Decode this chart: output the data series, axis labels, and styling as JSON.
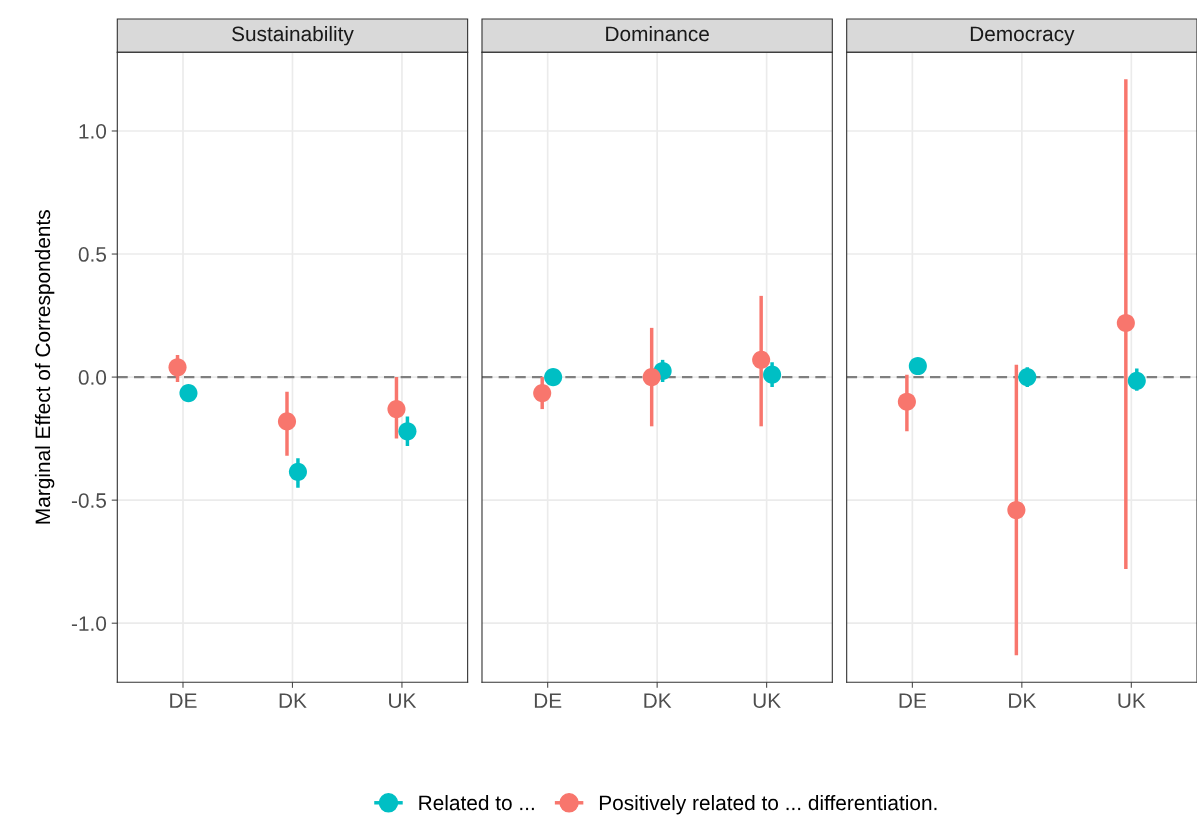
{
  "chart_data": [
    {
      "type": "scatter",
      "title": "Sustainability",
      "ylabel": "Marginal Effect of Correspondents",
      "categories": [
        "DE",
        "DK",
        "UK"
      ],
      "ylim": [
        -1.24,
        1.32
      ],
      "yticks": [
        {
          "value": -1.0,
          "label": "-1.0"
        },
        {
          "value": -0.5,
          "label": "-0.5"
        },
        {
          "value": 0.0,
          "label": "0.0"
        },
        {
          "value": 0.5,
          "label": "0.5"
        },
        {
          "value": 1.0,
          "label": "1.0"
        }
      ],
      "grid": true,
      "marker": "circle",
      "legend": "bottom",
      "ref_lines": [
        {
          "axis": "y",
          "value": 0,
          "color": "#7f7f7f",
          "line_style": "dashed"
        }
      ],
      "series": [
        {
          "name": "Related to ...",
          "color": "#00bfc4",
          "values": [
            -0.065,
            -0.385,
            -0.22
          ],
          "errors": [
            null,
            [
              -0.45,
              -0.33
            ],
            [
              -0.28,
              -0.16
            ]
          ]
        },
        {
          "name": "Positively related to ... differentiation.",
          "color": "#f8766d",
          "values": [
            0.04,
            -0.18,
            -0.13
          ],
          "errors": [
            [
              -0.02,
              0.09
            ],
            [
              -0.32,
              -0.06
            ],
            [
              -0.25,
              0.0
            ]
          ]
        }
      ]
    },
    {
      "type": "scatter",
      "title": "Dominance",
      "categories": [
        "DE",
        "DK",
        "UK"
      ],
      "ylim": [
        -1.24,
        1.32
      ],
      "tick_labels": "x",
      "grid": true,
      "marker": "circle",
      "ref_lines": [
        {
          "axis": "y",
          "value": 0,
          "color": "#7f7f7f",
          "line_style": "dashed"
        }
      ],
      "series": [
        {
          "color": "#00bfc4",
          "values": [
            0.0,
            0.025,
            0.01
          ],
          "errors": [
            null,
            [
              -0.02,
              0.07
            ],
            [
              -0.04,
              0.06
            ]
          ]
        },
        {
          "color": "#f8766d",
          "values": [
            -0.065,
            0.0,
            0.07
          ],
          "errors": [
            [
              -0.13,
              0.0
            ],
            [
              -0.2,
              0.2
            ],
            [
              -0.2,
              0.33
            ]
          ]
        }
      ]
    },
    {
      "type": "scatter",
      "title": "Democracy",
      "categories": [
        "DE",
        "DK",
        "UK"
      ],
      "ylim": [
        -1.24,
        1.32
      ],
      "tick_labels": "x",
      "grid": true,
      "marker": "circle",
      "ref_lines": [
        {
          "axis": "y",
          "value": 0,
          "color": "#7f7f7f",
          "line_style": "dashed"
        }
      ],
      "series": [
        {
          "color": "#00bfc4",
          "values": [
            0.045,
            0.0,
            -0.015
          ],
          "errors": [
            null,
            [
              -0.04,
              0.04
            ],
            [
              -0.055,
              0.035
            ]
          ]
        },
        {
          "color": "#f8766d",
          "values": [
            -0.1,
            -0.54,
            0.22
          ],
          "errors": [
            [
              -0.22,
              0.01
            ],
            [
              -1.13,
              0.05
            ],
            [
              -0.78,
              1.21
            ]
          ]
        }
      ]
    }
  ]
}
